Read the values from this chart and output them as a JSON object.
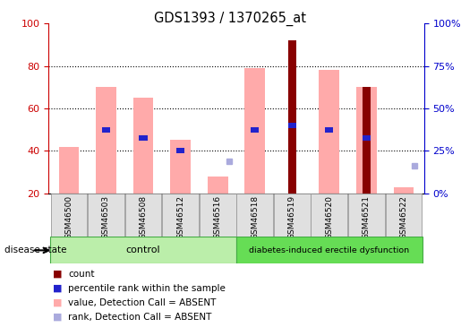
{
  "title": "GDS1393 / 1370265_at",
  "samples": [
    "GSM46500",
    "GSM46503",
    "GSM46508",
    "GSM46512",
    "GSM46516",
    "GSM46518",
    "GSM46519",
    "GSM46520",
    "GSM46521",
    "GSM46522"
  ],
  "n_samples": 10,
  "pink_bar_heights": [
    42,
    70,
    65,
    45,
    28,
    79,
    20,
    78,
    70,
    23
  ],
  "blue_square_heights": [
    null,
    null,
    null,
    null,
    35,
    null,
    null,
    null,
    null,
    33
  ],
  "red_bar_heights": [
    null,
    null,
    null,
    null,
    null,
    null,
    92,
    null,
    70,
    null
  ],
  "blue_bar_heights": [
    null,
    50,
    46,
    40,
    null,
    50,
    52,
    50,
    46,
    null
  ],
  "left_axis_color": "#cc0000",
  "right_axis_color": "#0000cc",
  "left_ticks": [
    20,
    40,
    60,
    80,
    100
  ],
  "right_tick_labels": [
    "0%",
    "25%",
    "50%",
    "75%",
    "100%"
  ],
  "pink_color": "#ffaaaa",
  "red_color": "#880000",
  "blue_bar_color": "#2222cc",
  "blue_sq_color": "#aaaadd",
  "ctrl_color": "#bbeeaa",
  "diab_color": "#66dd55",
  "label_bg": "#e0e0e0",
  "legend_items": [
    {
      "label": "count",
      "color": "#880000"
    },
    {
      "label": "percentile rank within the sample",
      "color": "#2222cc"
    },
    {
      "label": "value, Detection Call = ABSENT",
      "color": "#ffaaaa"
    },
    {
      "label": "rank, Detection Call = ABSENT",
      "color": "#aaaadd"
    }
  ]
}
